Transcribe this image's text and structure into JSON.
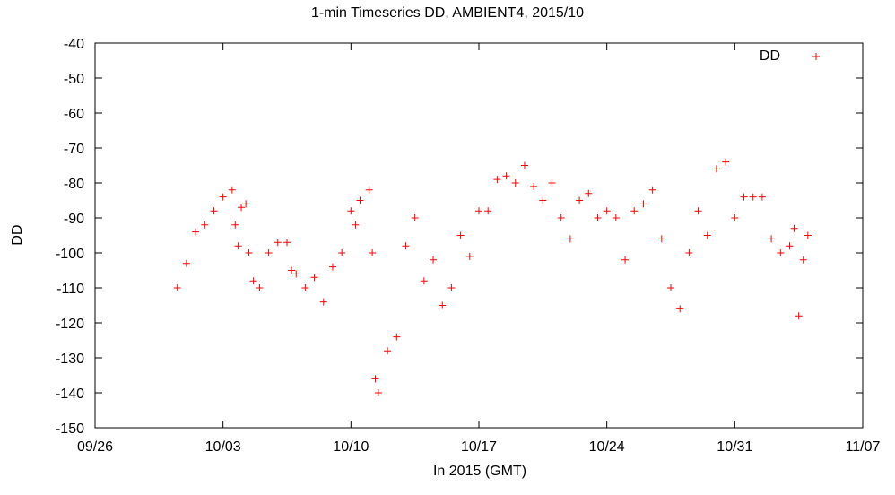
{
  "chart_data": {
    "type": "scatter",
    "title": "1-min Timeseries DD, AMBIENT4, 2015/10",
    "xlabel": "In 2015 (GMT)",
    "ylabel": "DD",
    "x_is_date": true,
    "xlim": [
      "2015-09-26",
      "2015-11-07"
    ],
    "ylim": [
      -150,
      -40
    ],
    "x_ticks": [
      "09/26",
      "10/03",
      "10/10",
      "10/17",
      "10/24",
      "10/31",
      "11/07"
    ],
    "y_ticks": [
      -40,
      -50,
      -60,
      -70,
      -80,
      -90,
      -100,
      -110,
      -120,
      -130,
      -140,
      -150
    ],
    "grid": false,
    "legend": "top-right",
    "series": [
      {
        "name": "DD",
        "color": "#ff0000",
        "marker": "plus",
        "points": [
          [
            "2015-09-30 12:00",
            -110
          ],
          [
            "2015-10-01 00:00",
            -103
          ],
          [
            "2015-10-01 12:00",
            -94
          ],
          [
            "2015-10-02 00:00",
            -92
          ],
          [
            "2015-10-02 12:00",
            -88
          ],
          [
            "2015-10-03 00:00",
            -84
          ],
          [
            "2015-10-03 12:00",
            -82
          ],
          [
            "2015-10-03 16:00",
            -92
          ],
          [
            "2015-10-03 20:00",
            -98
          ],
          [
            "2015-10-04 00:00",
            -87
          ],
          [
            "2015-10-04 06:00",
            -86
          ],
          [
            "2015-10-04 10:00",
            -100
          ],
          [
            "2015-10-04 16:00",
            -108
          ],
          [
            "2015-10-05 00:00",
            -110
          ],
          [
            "2015-10-05 12:00",
            -100
          ],
          [
            "2015-10-06 00:00",
            -97
          ],
          [
            "2015-10-06 12:00",
            -97
          ],
          [
            "2015-10-06 18:00",
            -105
          ],
          [
            "2015-10-07 00:00",
            -106
          ],
          [
            "2015-10-07 12:00",
            -110
          ],
          [
            "2015-10-08 00:00",
            -107
          ],
          [
            "2015-10-08 12:00",
            -114
          ],
          [
            "2015-10-09 00:00",
            -104
          ],
          [
            "2015-10-09 12:00",
            -100
          ],
          [
            "2015-10-10 00:00",
            -88
          ],
          [
            "2015-10-10 06:00",
            -92
          ],
          [
            "2015-10-10 12:00",
            -85
          ],
          [
            "2015-10-11 00:00",
            -82
          ],
          [
            "2015-10-11 04:00",
            -100
          ],
          [
            "2015-10-11 08:00",
            -136
          ],
          [
            "2015-10-11 12:00",
            -140
          ],
          [
            "2015-10-12 00:00",
            -128
          ],
          [
            "2015-10-12 12:00",
            -124
          ],
          [
            "2015-10-13 00:00",
            -98
          ],
          [
            "2015-10-13 12:00",
            -90
          ],
          [
            "2015-10-14 00:00",
            -108
          ],
          [
            "2015-10-14 12:00",
            -102
          ],
          [
            "2015-10-15 00:00",
            -115
          ],
          [
            "2015-10-15 12:00",
            -110
          ],
          [
            "2015-10-16 00:00",
            -95
          ],
          [
            "2015-10-16 12:00",
            -101
          ],
          [
            "2015-10-17 00:00",
            -88
          ],
          [
            "2015-10-17 12:00",
            -88
          ],
          [
            "2015-10-18 00:00",
            -79
          ],
          [
            "2015-10-18 12:00",
            -78
          ],
          [
            "2015-10-19 00:00",
            -80
          ],
          [
            "2015-10-19 12:00",
            -75
          ],
          [
            "2015-10-20 00:00",
            -81
          ],
          [
            "2015-10-20 12:00",
            -85
          ],
          [
            "2015-10-21 00:00",
            -80
          ],
          [
            "2015-10-21 12:00",
            -90
          ],
          [
            "2015-10-22 00:00",
            -96
          ],
          [
            "2015-10-22 12:00",
            -85
          ],
          [
            "2015-10-23 00:00",
            -83
          ],
          [
            "2015-10-23 12:00",
            -90
          ],
          [
            "2015-10-24 00:00",
            -88
          ],
          [
            "2015-10-24 12:00",
            -90
          ],
          [
            "2015-10-25 00:00",
            -102
          ],
          [
            "2015-10-25 12:00",
            -88
          ],
          [
            "2015-10-26 00:00",
            -86
          ],
          [
            "2015-10-26 12:00",
            -82
          ],
          [
            "2015-10-27 00:00",
            -96
          ],
          [
            "2015-10-27 12:00",
            -110
          ],
          [
            "2015-10-28 00:00",
            -116
          ],
          [
            "2015-10-28 12:00",
            -100
          ],
          [
            "2015-10-29 00:00",
            -88
          ],
          [
            "2015-10-29 12:00",
            -95
          ],
          [
            "2015-10-30 00:00",
            -76
          ],
          [
            "2015-10-30 12:00",
            -74
          ],
          [
            "2015-10-31 00:00",
            -90
          ],
          [
            "2015-10-31 12:00",
            -84
          ],
          [
            "2015-11-01 00:00",
            -84
          ],
          [
            "2015-11-01 12:00",
            -84
          ],
          [
            "2015-11-02 00:00",
            -96
          ],
          [
            "2015-11-02 12:00",
            -100
          ],
          [
            "2015-11-03 00:00",
            -98
          ],
          [
            "2015-11-03 06:00",
            -93
          ],
          [
            "2015-11-03 12:00",
            -118
          ],
          [
            "2015-11-03 18:00",
            -102
          ],
          [
            "2015-11-04 00:00",
            -95
          ]
        ]
      }
    ]
  }
}
